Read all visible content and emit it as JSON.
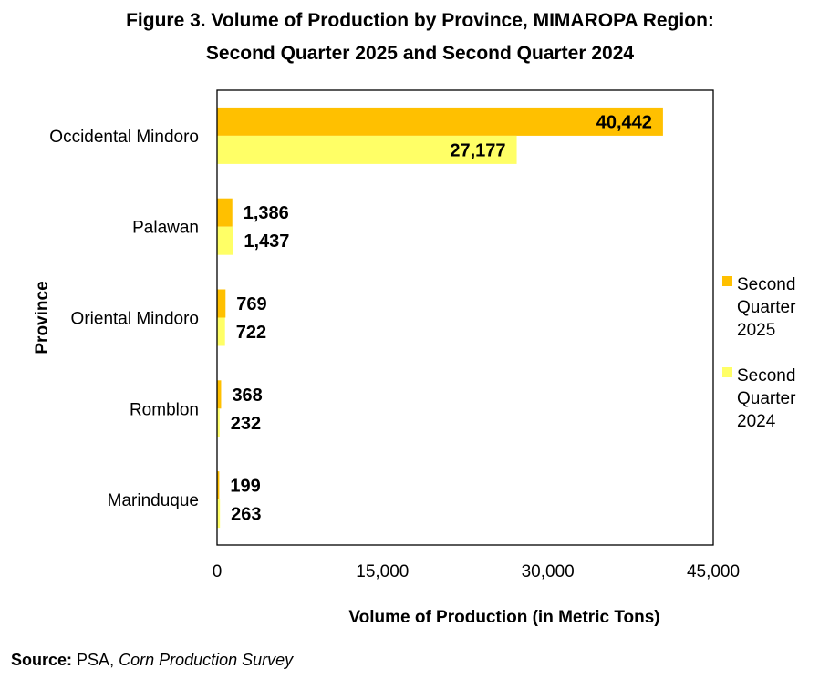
{
  "title_line1": "Figure 3. Volume of Production by Province, MIMAROPA Region:",
  "title_line2": "Second Quarter 2025 and Second Quarter 2024",
  "source": {
    "label": "Source:",
    "org": "PSA,",
    "survey": "Corn Production Survey"
  },
  "colors": {
    "series_2025": "#FFC000",
    "series_2024": "#FFFF66",
    "axis": "#000000"
  },
  "chart_data": {
    "type": "bar",
    "orientation": "horizontal",
    "categories": [
      "Occidental Mindoro",
      "Palawan",
      "Oriental Mindoro",
      "Romblon",
      "Marinduque"
    ],
    "series": [
      {
        "name": "Second Quarter 2025",
        "values": [
          40442,
          1386,
          769,
          368,
          199
        ],
        "color": "#FFC000",
        "labels": [
          "40,442",
          "1,386",
          "769",
          "368",
          "199"
        ]
      },
      {
        "name": "Second Quarter 2024",
        "values": [
          27177,
          1437,
          722,
          232,
          263
        ],
        "color": "#FFFF66",
        "labels": [
          "27,177",
          "1,437",
          "722",
          "232",
          "263"
        ]
      }
    ],
    "xlabel": "Volume of Production (in Metric Tons)",
    "ylabel": "Province",
    "xlim": [
      0,
      45000
    ],
    "xticks": [
      0,
      15000,
      30000,
      45000
    ],
    "xtick_labels": [
      "0",
      "15,000",
      "30,000",
      "45,000"
    ],
    "legend_position": "right",
    "legend_lines": [
      [
        "Second",
        "Quarter",
        "2025"
      ],
      [
        "Second",
        "Quarter",
        "2024"
      ]
    ],
    "grid": false
  }
}
